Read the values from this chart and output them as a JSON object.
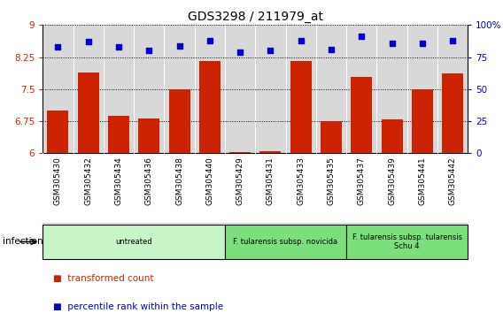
{
  "title": "GDS3298 / 211979_at",
  "samples": [
    "GSM305430",
    "GSM305432",
    "GSM305434",
    "GSM305436",
    "GSM305438",
    "GSM305440",
    "GSM305429",
    "GSM305431",
    "GSM305433",
    "GSM305435",
    "GSM305437",
    "GSM305439",
    "GSM305441",
    "GSM305442"
  ],
  "transformed_count": [
    7.0,
    7.9,
    6.87,
    6.82,
    7.5,
    8.15,
    6.02,
    6.05,
    8.15,
    6.76,
    7.78,
    6.8,
    7.5,
    7.88
  ],
  "percentile_rank": [
    83,
    87,
    83,
    80,
    84,
    88,
    79,
    80,
    88,
    81,
    91,
    86,
    86,
    88
  ],
  "groups": [
    {
      "label": "untreated",
      "start": 0,
      "end": 6,
      "color": "#c8f5c8"
    },
    {
      "label": "F. tularensis subsp. novicida",
      "start": 6,
      "end": 10,
      "color": "#7be07b"
    },
    {
      "label": "F. tularensis subsp. tularensis\nSchu 4",
      "start": 10,
      "end": 14,
      "color": "#7be07b"
    }
  ],
  "infection_label": "infection",
  "ylim_left": [
    6,
    9
  ],
  "ylim_right": [
    0,
    100
  ],
  "yticks_left": [
    6,
    6.75,
    7.5,
    8.25,
    9
  ],
  "ytick_labels_left": [
    "6",
    "6.75",
    "7.5",
    "8.25",
    "9"
  ],
  "yticks_right": [
    0,
    25,
    50,
    75,
    100
  ],
  "ytick_labels_right": [
    "0",
    "25",
    "50",
    "75",
    "100%"
  ],
  "bar_color": "#cc2200",
  "dot_color": "#0000cc",
  "legend_items": [
    "transformed count",
    "percentile rank within the sample"
  ],
  "plot_bg": "#d8d8d8",
  "label_bg": "#d8d8d8"
}
